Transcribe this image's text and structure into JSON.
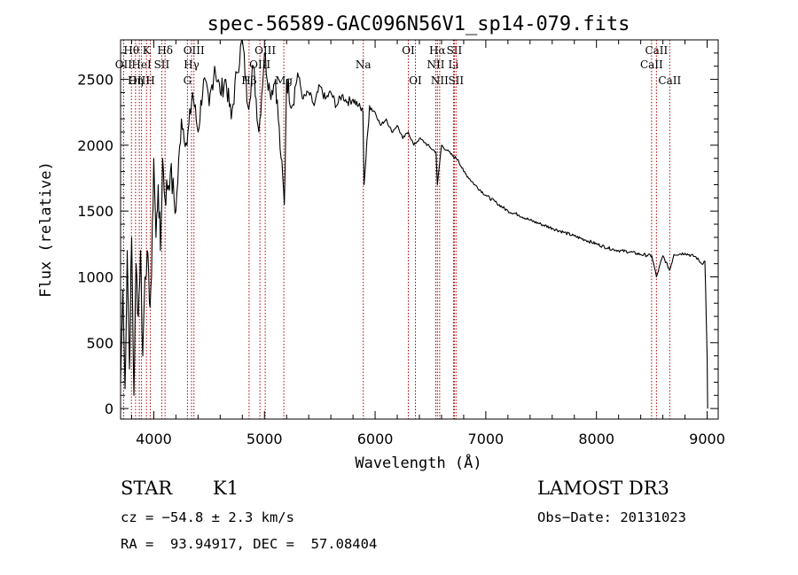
{
  "chart_data": {
    "type": "line",
    "title": "spec-56589-GAC096N56V1_sp14-079.fits",
    "xlabel": "Wavelength (Å)",
    "ylabel": "Flux (relative)",
    "xlim": [
      3700,
      9100
    ],
    "ylim": [
      -80,
      2800
    ],
    "xticks": [
      4000,
      5000,
      6000,
      7000,
      8000,
      9000
    ],
    "yticks": [
      0,
      500,
      1000,
      1500,
      2000,
      2500
    ],
    "grid": false,
    "line_color": "#000000",
    "marker_color": "#b00000",
    "series": [
      {
        "name": "flux",
        "x": [
          3700,
          3720,
          3740,
          3760,
          3780,
          3800,
          3820,
          3840,
          3860,
          3880,
          3900,
          3920,
          3940,
          3960,
          3980,
          4000,
          4020,
          4040,
          4060,
          4080,
          4100,
          4150,
          4200,
          4250,
          4300,
          4350,
          4400,
          4450,
          4500,
          4550,
          4600,
          4650,
          4700,
          4750,
          4800,
          4850,
          4900,
          4950,
          5000,
          5050,
          5100,
          5150,
          5180,
          5200,
          5250,
          5300,
          5350,
          5400,
          5450,
          5500,
          5550,
          5600,
          5650,
          5700,
          5750,
          5800,
          5850,
          5890,
          5900,
          5950,
          6000,
          6050,
          6100,
          6150,
          6200,
          6250,
          6300,
          6350,
          6400,
          6450,
          6500,
          6550,
          6563,
          6600,
          6650,
          6700,
          6750,
          6800,
          6900,
          7000,
          7100,
          7200,
          7300,
          7400,
          7500,
          7600,
          7700,
          7800,
          7900,
          8000,
          8100,
          8200,
          8300,
          8400,
          8500,
          8542,
          8600,
          8662,
          8700,
          8800,
          8900,
          8950,
          8980,
          9000,
          9005
        ],
        "y": [
          200,
          900,
          150,
          1200,
          300,
          1300,
          100,
          1100,
          700,
          1200,
          400,
          1000,
          1200,
          800,
          1000,
          1900,
          1300,
          1700,
          1200,
          1900,
          1600,
          1800,
          1500,
          2200,
          2000,
          2400,
          2100,
          2500,
          2300,
          2600,
          2400,
          2500,
          2200,
          2550,
          2800,
          2300,
          2600,
          2100,
          2700,
          2400,
          2500,
          1900,
          1550,
          2500,
          2300,
          2550,
          2350,
          2400,
          2300,
          2450,
          2350,
          2400,
          2300,
          2380,
          2330,
          2350,
          2300,
          2250,
          1700,
          2300,
          2250,
          2150,
          2200,
          2100,
          2150,
          2050,
          2100,
          2000,
          2050,
          2020,
          1980,
          1950,
          1700,
          2000,
          1960,
          1920,
          1890,
          1800,
          1700,
          1620,
          1560,
          1500,
          1470,
          1430,
          1400,
          1370,
          1340,
          1310,
          1280,
          1250,
          1220,
          1200,
          1190,
          1170,
          1160,
          1000,
          1160,
          1050,
          1170,
          1180,
          1150,
          1100,
          1120,
          400,
          0
        ]
      }
    ],
    "lines": [
      {
        "label": "Hθ",
        "x": 3798,
        "row": 1
      },
      {
        "label": "OII",
        "x": 3727,
        "row": 2
      },
      {
        "label": "OIII",
        "x": 3869,
        "row": 3
      },
      {
        "label": "Hη",
        "x": 3835,
        "row": 3
      },
      {
        "label": "K",
        "x": 3934,
        "row": 1
      },
      {
        "label": "HeI",
        "x": 3889,
        "row": 2
      },
      {
        "label": "H",
        "x": 3969,
        "row": 3
      },
      {
        "label": "Hδ",
        "x": 4102,
        "row": 1
      },
      {
        "label": "SII",
        "x": 4072,
        "row": 2
      },
      {
        "label": "OIII",
        "x": 4363,
        "row": 1
      },
      {
        "label": "Hγ",
        "x": 4341,
        "row": 2
      },
      {
        "label": "G",
        "x": 4304,
        "row": 3
      },
      {
        "label": "OIII",
        "x": 5007,
        "row": 1
      },
      {
        "label": "OIII",
        "x": 4959,
        "row": 2
      },
      {
        "label": "Hβ",
        "x": 4861,
        "row": 3
      },
      {
        "label": "Mg",
        "x": 5175,
        "row": 3
      },
      {
        "label": "Na",
        "x": 5893,
        "row": 2
      },
      {
        "label": "OI",
        "x": 6300,
        "row": 1
      },
      {
        "label": "OI",
        "x": 6364,
        "row": 3
      },
      {
        "label": "Hα",
        "x": 6563,
        "row": 1
      },
      {
        "label": "NII",
        "x": 6548,
        "row": 2
      },
      {
        "label": "NII",
        "x": 6583,
        "row": 3
      },
      {
        "label": "SII",
        "x": 6716,
        "row": 1
      },
      {
        "label": "Li",
        "x": 6708,
        "row": 2
      },
      {
        "label": "SII",
        "x": 6731,
        "row": 3
      },
      {
        "label": "CaII",
        "x": 8542,
        "row": 1
      },
      {
        "label": "CaII",
        "x": 8498,
        "row": 2
      },
      {
        "label": "CaII",
        "x": 8662,
        "row": 3
      }
    ]
  },
  "info": {
    "class": "STAR",
    "subclass": "K1",
    "survey": "LAMOST DR3",
    "cz": "cz = −54.8 ± 2.3 km/s",
    "obs_date": "Obs−Date: 20131023",
    "radec": "RA =  93.94917, DEC =  57.08404"
  }
}
